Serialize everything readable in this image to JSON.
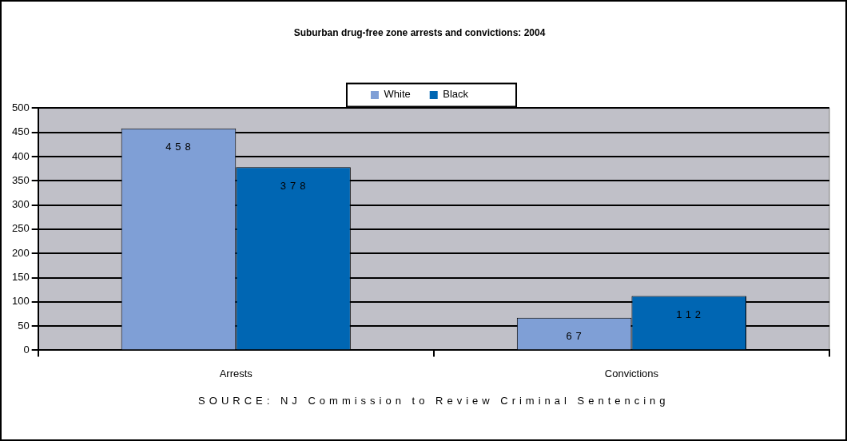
{
  "chart_data": {
    "type": "bar",
    "title": "Suburban drug-free zone arrests and convictions: 2004",
    "categories": [
      "Arrests",
      "Convictions"
    ],
    "series": [
      {
        "name": "White",
        "color": "#7f9fd6",
        "values": [
          458,
          67
        ]
      },
      {
        "name": "Black",
        "color": "#0066b3",
        "values": [
          378,
          112
        ]
      }
    ],
    "ylim": [
      0,
      500
    ],
    "yticks": [
      0,
      50,
      100,
      150,
      200,
      250,
      300,
      350,
      400,
      450,
      500
    ],
    "grid": "y",
    "legend": "top",
    "data_labels": true,
    "annotations": [
      "SOURCE: NJ Commission to Review Criminal Sentencing"
    ]
  }
}
